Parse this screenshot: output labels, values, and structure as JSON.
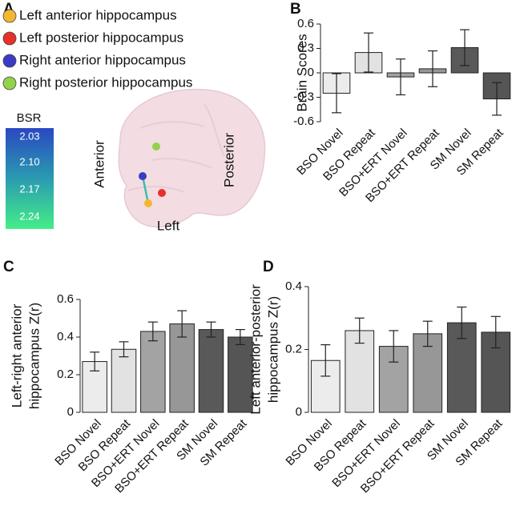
{
  "panel_a": {
    "panel_label": "A",
    "legend": [
      {
        "label": "Left anterior hippocampus",
        "color": "#f5b731"
      },
      {
        "label": "Left posterior hippocampus",
        "color": "#e8302a"
      },
      {
        "label": "Right anterior hippocampus",
        "color": "#3b3bc6"
      },
      {
        "label": "Right posterior hippocampus",
        "color": "#92d24c"
      }
    ],
    "colorbar_title": "BSR",
    "colorbar_labels": [
      "2.03",
      "2.10",
      "2.17",
      "2.24"
    ],
    "orientation": {
      "anterior": "Anterior",
      "posterior": "Posterior",
      "side": "Left"
    }
  },
  "chart_data": [
    {
      "type": "bar",
      "panel_label": "B",
      "ylabel": [
        "Brain Scores"
      ],
      "categories": [
        "BSO Novel",
        "BSO Repeat",
        "BSO+ERT Novel",
        "BSO+ERT Repeat",
        "SM Novel",
        "SM Repeat"
      ],
      "values": [
        -0.25,
        0.25,
        -0.05,
        0.05,
        0.31,
        -0.32
      ],
      "errors": [
        0.24,
        0.24,
        0.22,
        0.22,
        0.22,
        0.2
      ],
      "colors": [
        "#ececec",
        "#e2e2e2",
        "#a3a3a3",
        "#979797",
        "#595959",
        "#555555"
      ],
      "ylim": [
        -0.6,
        0.6
      ],
      "yticks": [
        -0.6,
        -0.3,
        0,
        0.3,
        0.6
      ]
    },
    {
      "type": "bar",
      "panel_label": "C",
      "ylabel": [
        "Left-right anterior",
        "hippocampus Z(r)"
      ],
      "categories": [
        "BSO Novel",
        "BSO Repeat",
        "BSO+ERT Novel",
        "BSO+ERT Repeat",
        "SM Novel",
        "SM Repeat"
      ],
      "values": [
        0.27,
        0.335,
        0.43,
        0.47,
        0.44,
        0.4
      ],
      "errors": [
        0.05,
        0.04,
        0.05,
        0.07,
        0.04,
        0.04
      ],
      "colors": [
        "#ececec",
        "#e2e2e2",
        "#a3a3a3",
        "#979797",
        "#595959",
        "#555555"
      ],
      "ylim": [
        0,
        0.6
      ],
      "yticks": [
        0,
        0.2,
        0.4,
        0.6
      ]
    },
    {
      "type": "bar",
      "panel_label": "D",
      "ylabel": [
        "Left anterior-posterior",
        "hippocampus Z(r)"
      ],
      "categories": [
        "BSO Novel",
        "BSO Repeat",
        "BSO+ERT Novel",
        "BSO+ERT Repeat",
        "SM Novel",
        "SM Repeat"
      ],
      "values": [
        0.165,
        0.26,
        0.21,
        0.25,
        0.285,
        0.255
      ],
      "errors": [
        0.05,
        0.04,
        0.05,
        0.04,
        0.05,
        0.05
      ],
      "colors": [
        "#ececec",
        "#e2e2e2",
        "#a3a3a3",
        "#979797",
        "#595959",
        "#555555"
      ],
      "ylim": [
        0,
        0.4
      ],
      "yticks": [
        0,
        0.2,
        0.4
      ]
    }
  ]
}
